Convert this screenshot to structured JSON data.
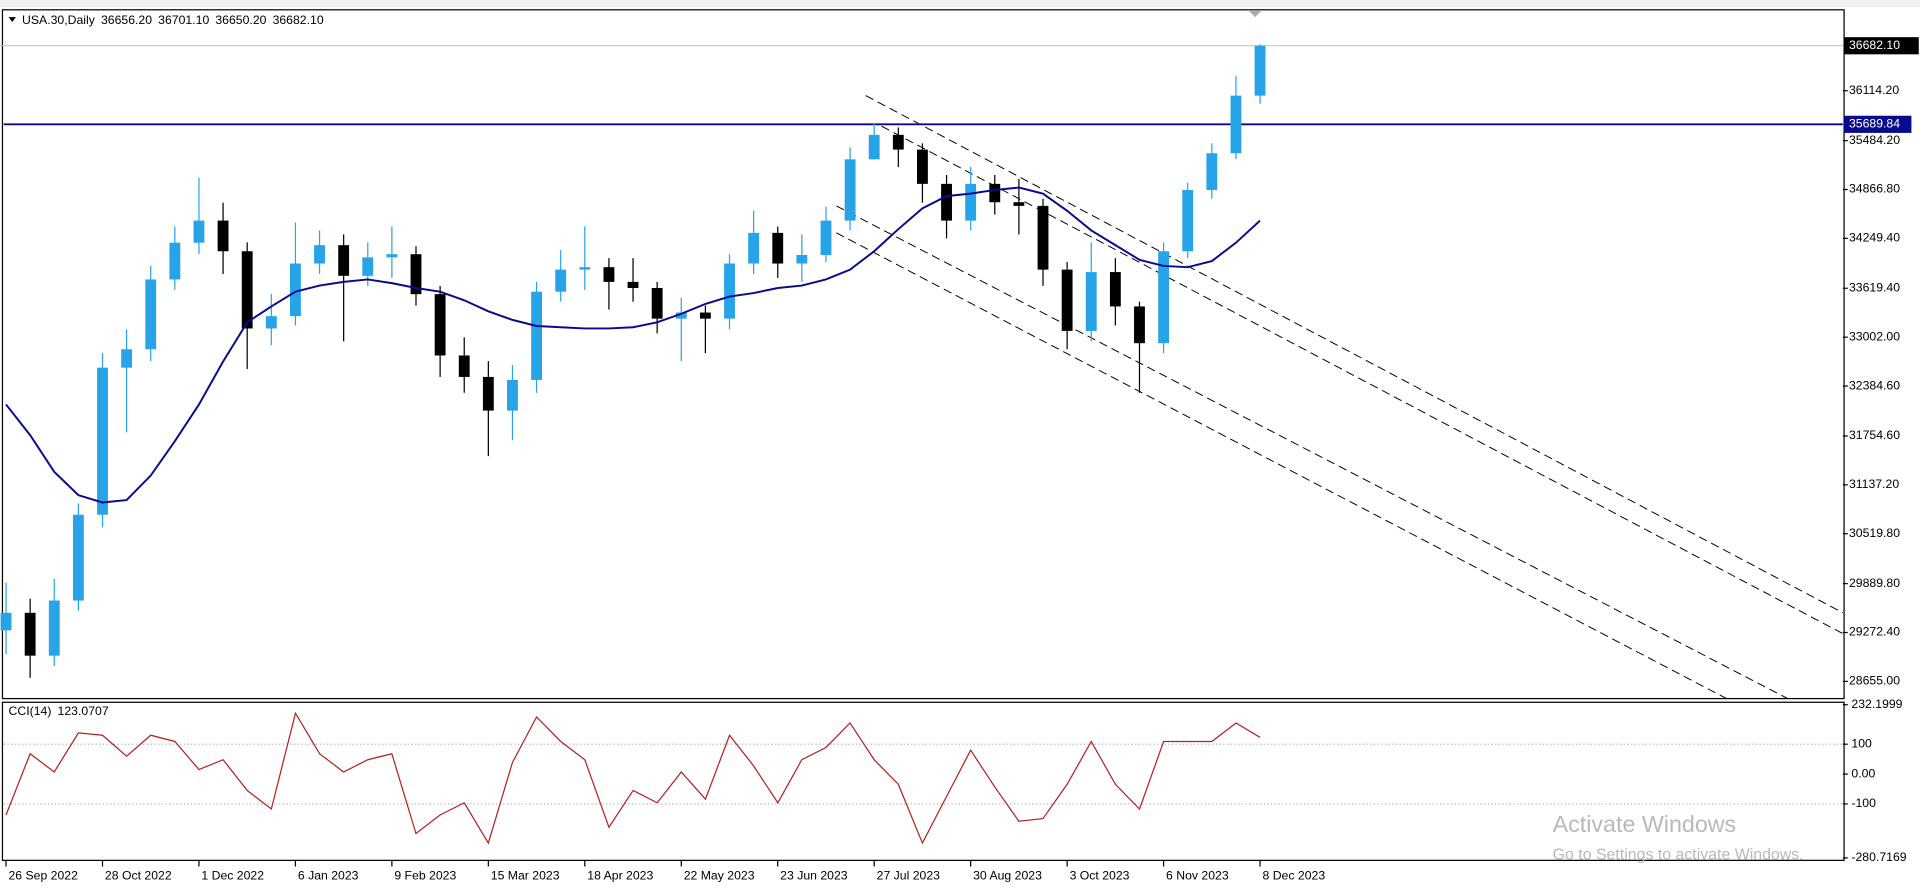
{
  "chart_data": [
    {
      "type": "candlestick",
      "title": "USA.30,Daily",
      "ohlc_header": [
        {
          "value": 36656.2,
          "label": "36656.20"
        },
        {
          "value": 36701.1,
          "label": "36701.10"
        },
        {
          "value": 36650.2,
          "label": "36650.20"
        },
        {
          "value": 36682.1,
          "label": "36682.10"
        }
      ],
      "x": [
        0,
        6,
        12,
        18,
        24,
        30,
        36,
        42,
        48,
        54,
        60,
        66,
        72,
        78,
        84,
        90,
        96,
        102,
        108,
        114,
        120,
        126,
        132,
        138,
        144,
        150,
        156,
        162,
        168,
        174,
        180,
        186,
        192,
        198,
        204,
        210,
        216,
        222,
        228,
        234,
        240,
        246,
        252,
        258,
        264,
        270,
        276,
        282,
        288,
        294,
        300,
        306,
        312
      ],
      "open": [
        29300,
        29521,
        28980,
        29676,
        30760,
        32617,
        32849,
        33731,
        34195,
        34474,
        34087,
        33112,
        33267,
        33932,
        34164,
        33777,
        34010,
        34050,
        33545,
        32771,
        32500,
        32075,
        32462,
        33576,
        33855,
        33886,
        33700,
        33623,
        33236,
        33313,
        33236,
        33932,
        34319,
        33932,
        34040,
        34474,
        35248,
        35557,
        35371,
        34938,
        34474,
        34938,
        34706,
        34660,
        33855,
        33081,
        33824,
        33390,
        32926,
        34087,
        34861,
        35325,
        36052
      ],
      "high": [
        29900,
        29700,
        29950,
        30900,
        32800,
        33100,
        33900,
        34400,
        35015,
        34700,
        34200,
        33550,
        34450,
        34350,
        34300,
        34200,
        34400,
        34150,
        33650,
        33000,
        32700,
        32650,
        33700,
        34100,
        34400,
        34000,
        34000,
        33700,
        33500,
        33400,
        34050,
        34600,
        34400,
        34300,
        34650,
        35400,
        35700,
        35650,
        35450,
        35050,
        35150,
        35050,
        35000,
        34750,
        33950,
        34200,
        34000,
        33450,
        34200,
        34950,
        35450,
        36300,
        36701.1
      ],
      "low": [
        29000,
        28700,
        28850,
        29550,
        30600,
        31800,
        32700,
        33600,
        34050,
        33800,
        32600,
        32900,
        33150,
        33800,
        32950,
        33650,
        33750,
        33400,
        32500,
        32300,
        31500,
        31700,
        32300,
        33450,
        33600,
        33350,
        33450,
        33050,
        32700,
        32800,
        33100,
        33800,
        33750,
        33700,
        33950,
        34350,
        35250,
        35150,
        34700,
        34250,
        34350,
        34550,
        34300,
        33650,
        32850,
        32950,
        33150,
        32300,
        32800,
        34000,
        34750,
        35250,
        35950
      ],
      "close": [
        29521,
        28980,
        29676,
        30760,
        32617,
        32849,
        33731,
        34195,
        34474,
        34087,
        33112,
        33267,
        33932,
        34164,
        33777,
        34010,
        34050,
        33545,
        32771,
        32500,
        32075,
        32462,
        33576,
        33855,
        33886,
        33700,
        33623,
        33236,
        33313,
        33236,
        33932,
        34319,
        33932,
        34040,
        34474,
        35248,
        35557,
        35371,
        34938,
        34474,
        34938,
        34706,
        34660,
        33855,
        33081,
        33824,
        33390,
        32926,
        34087,
        34861,
        35325,
        36052,
        36682.1
      ],
      "up_color": "#27a4e8",
      "down_color": "#000000",
      "xlim": [
        -1.5,
        457
      ],
      "ylim": [
        28438,
        37136
      ],
      "yticks": [
        {
          "value": 36114.2,
          "label": "36114.20"
        },
        {
          "value": 35484.2,
          "label": "35484.20"
        },
        {
          "value": 34866.8,
          "label": "34866.80"
        },
        {
          "value": 34249.4,
          "label": "34249.40"
        },
        {
          "value": 33619.4,
          "label": "33619.40"
        },
        {
          "value": 33002,
          "label": "33002.00"
        },
        {
          "value": 32384.6,
          "label": "32384.60"
        },
        {
          "value": 31754.6,
          "label": "31754.60"
        },
        {
          "value": 31137.2,
          "label": "31137.20"
        },
        {
          "value": 30519.8,
          "label": "30519.80"
        },
        {
          "value": 29889.8,
          "label": "29889.80"
        },
        {
          "value": 29272.4,
          "label": "29272.40"
        },
        {
          "value": 28655,
          "label": "28655.00"
        }
      ],
      "ma": {
        "color": "#0a0a8c",
        "values": [
          32152,
          31765,
          31301,
          31007,
          30914,
          30945,
          31255,
          31688,
          32152,
          32694,
          33189,
          33390,
          33576,
          33653,
          33700,
          33731,
          33684,
          33623,
          33576,
          33468,
          33328,
          33220,
          33143,
          33127,
          33112,
          33112,
          33127,
          33189,
          33297,
          33421,
          33514,
          33560,
          33623,
          33653,
          33731,
          33855,
          34087,
          34365,
          34629,
          34783,
          34814,
          34861,
          34892,
          34814,
          34598,
          34350,
          34164,
          33978,
          33901,
          33886,
          33963,
          34195,
          34474
        ]
      },
      "hline": {
        "value": 35689.84,
        "color": "#0a0a8c"
      },
      "price_tag": {
        "value": 36682.1,
        "label": "36682.10"
      }
    },
    {
      "type": "line",
      "title": "CCI(14)",
      "x": [
        0,
        6,
        12,
        18,
        24,
        30,
        36,
        42,
        48,
        54,
        60,
        66,
        72,
        78,
        84,
        90,
        96,
        102,
        108,
        114,
        120,
        126,
        132,
        138,
        144,
        150,
        156,
        162,
        168,
        174,
        180,
        186,
        192,
        198,
        204,
        210,
        216,
        222,
        228,
        234,
        240,
        246,
        252,
        258,
        264,
        270,
        276,
        282,
        288,
        294,
        300,
        306,
        312
      ],
      "values": [
        -137,
        68,
        7,
        138,
        130,
        60,
        130,
        109,
        15,
        48,
        -55,
        -117,
        204,
        68,
        7,
        48,
        68,
        -199,
        -137,
        -96,
        -231,
        39,
        191,
        109,
        48,
        -178,
        -55,
        -96,
        7,
        -84,
        130,
        27,
        -96,
        48,
        89,
        171,
        48,
        -34,
        -231,
        -75,
        80,
        -43,
        -158,
        -149,
        -34,
        109,
        -34,
        -117,
        109,
        109,
        109,
        171,
        123.0707
      ],
      "color": "#b22222",
      "xlim": [
        -1.5,
        457
      ],
      "ylim": [
        -280.7169,
        232.1999
      ],
      "yticks": [
        232.1999,
        100,
        {
          "value": 0,
          "label": "0.00"
        },
        -100,
        -280.7169
      ],
      "levels": [
        100,
        -100
      ],
      "xticks": [
        {
          "value": 0,
          "label": "26 Sep 2022"
        },
        {
          "value": 24,
          "label": "28 Oct 2022"
        },
        {
          "value": 48,
          "label": "1 Dec 2022"
        },
        {
          "value": 72,
          "label": "6 Jan 2023"
        },
        {
          "value": 96,
          "label": "9 Feb 2023"
        },
        {
          "value": 120,
          "label": "15 Mar 2023"
        },
        {
          "value": 144,
          "label": "18 Apr 2023"
        },
        {
          "value": 168,
          "label": "22 May 2023"
        },
        {
          "value": 192,
          "label": "23 Jun 2023"
        },
        {
          "value": 216,
          "label": "27 Jul 2023"
        },
        {
          "value": 240,
          "label": "30 Aug 2023"
        },
        {
          "value": 264,
          "label": "3 Oct 2023"
        },
        {
          "value": 288,
          "label": "6 Nov 2023"
        },
        {
          "value": 312,
          "label": "8 Dec 2023"
        }
      ]
    }
  ],
  "watermark": {
    "title": "Activate Windows",
    "subtitle": "Go to Settings to activate Windows."
  }
}
